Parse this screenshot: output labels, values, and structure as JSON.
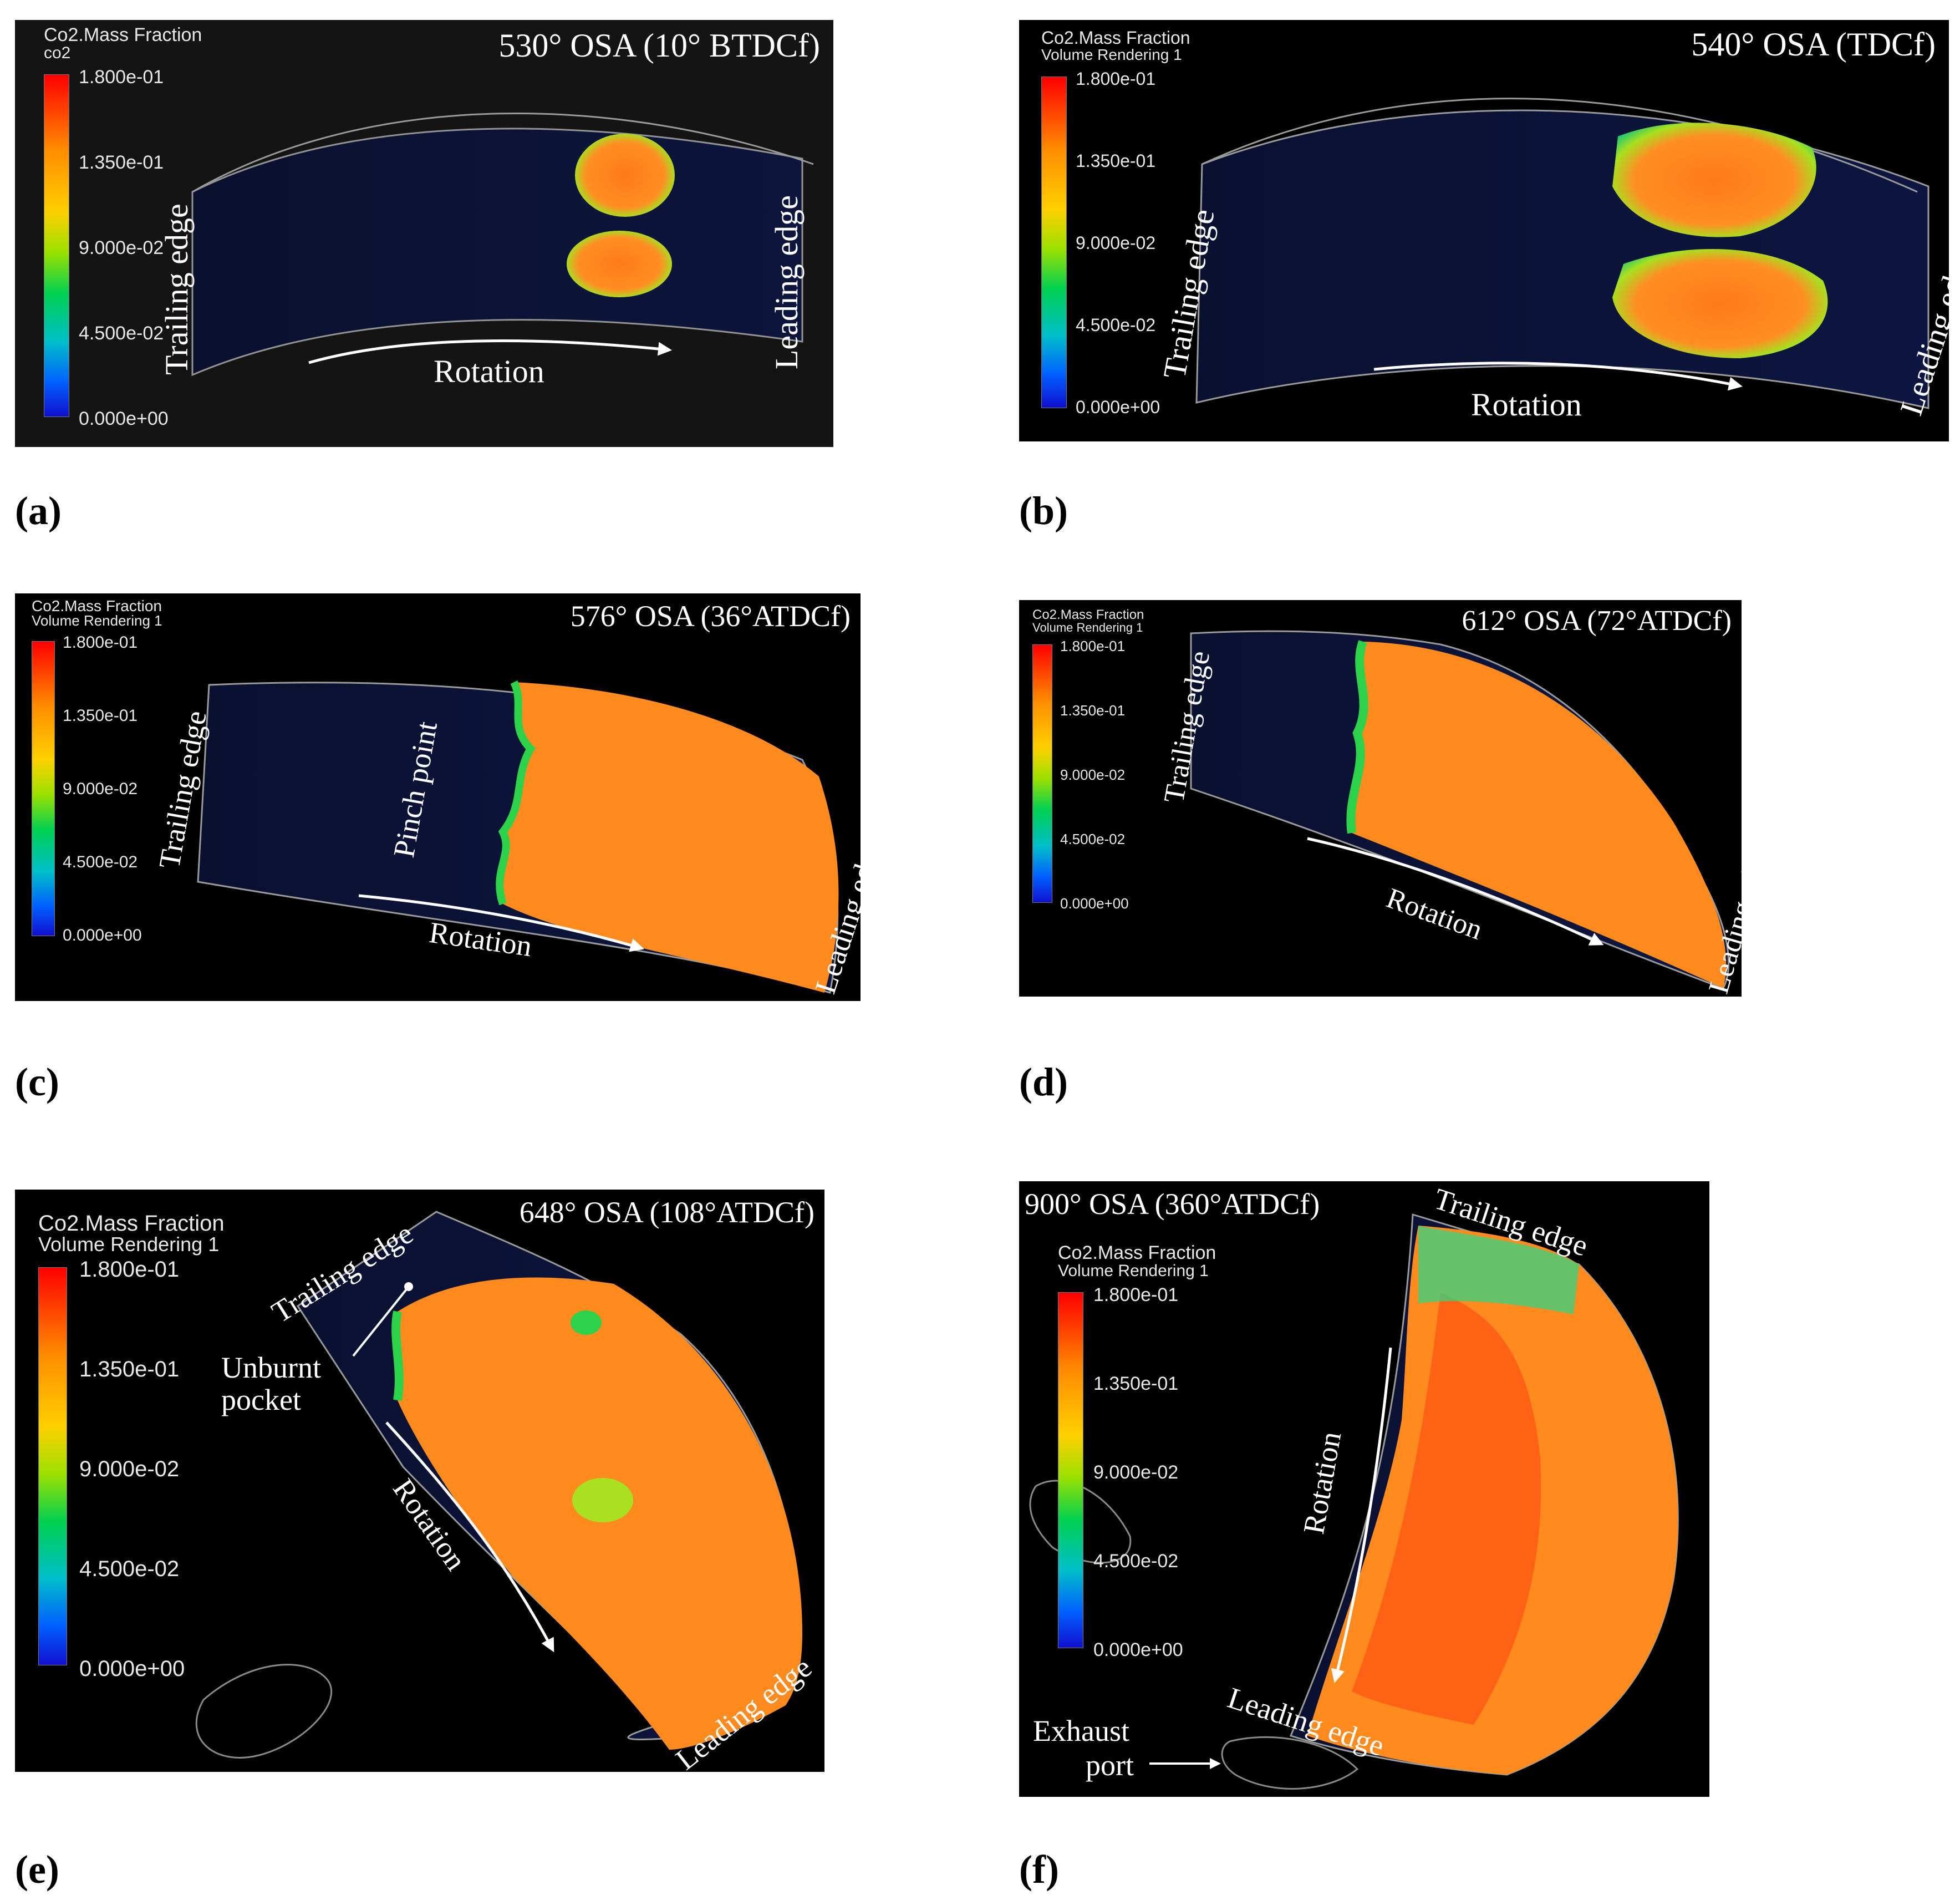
{
  "legend": {
    "field": "Co2.Mass Fraction",
    "sub_a": "co2",
    "sub_other": "Volume Rendering 1",
    "ticks": [
      "1.800e-01",
      "1.350e-01",
      "9.000e-02",
      "4.500e-02",
      "0.000e+00"
    ]
  },
  "labels": {
    "trailing": "Trailing edge",
    "leading": "Leading edge",
    "rotation": "Rotation",
    "pinch": "Pinch point",
    "unburnt_1": "Unburnt",
    "unburnt_2": "pocket",
    "exhaust_1": "Exhaust",
    "exhaust_2": "port"
  },
  "panels": {
    "a": {
      "tag": "(a)",
      "title": "530° OSA (10° BTDCf)"
    },
    "b": {
      "tag": "(b)",
      "title": "540° OSA (TDCf)"
    },
    "c": {
      "tag": "(c)",
      "title": "576° OSA (36°ATDCf)"
    },
    "d": {
      "tag": "(d)",
      "title": "612° OSA (72°ATDCf)"
    },
    "e": {
      "tag": "(e)",
      "title": "648° OSA (108°ATDCf)"
    },
    "f": {
      "tag": "(f)",
      "title": "900° OSA (360°ATDCf)"
    }
  },
  "colors": {
    "burnt": "#ff8a1e",
    "hot": "#ff5a14",
    "front": "#2bd24a",
    "unburnt": "#0b1236"
  }
}
